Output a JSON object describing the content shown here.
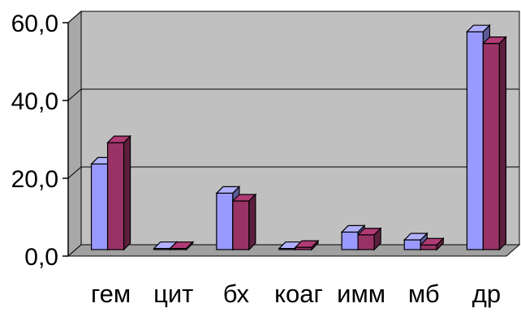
{
  "chart_data": {
    "type": "bar",
    "style": "3d-clustered",
    "categories": [
      "гем",
      "цит",
      "бх",
      "коаг",
      "имм",
      "мб",
      "др"
    ],
    "series": [
      {
        "values": [
          22.0,
          0.3,
          14.5,
          0.3,
          4.5,
          2.5,
          56.0
        ],
        "color": "#9999ff"
      },
      {
        "values": [
          27.5,
          0.3,
          12.5,
          0.6,
          3.8,
          1.2,
          53.0
        ],
        "color": "#993366"
      }
    ],
    "y_ticks": [
      "0,0",
      "20,0",
      "40,0",
      "60,0"
    ],
    "ylim": [
      0,
      60
    ],
    "gridlines": true,
    "legend": "none",
    "colors": {
      "wall": "#c0c0c0",
      "floor": "#a0a0a0",
      "gridline": "#000000"
    }
  }
}
